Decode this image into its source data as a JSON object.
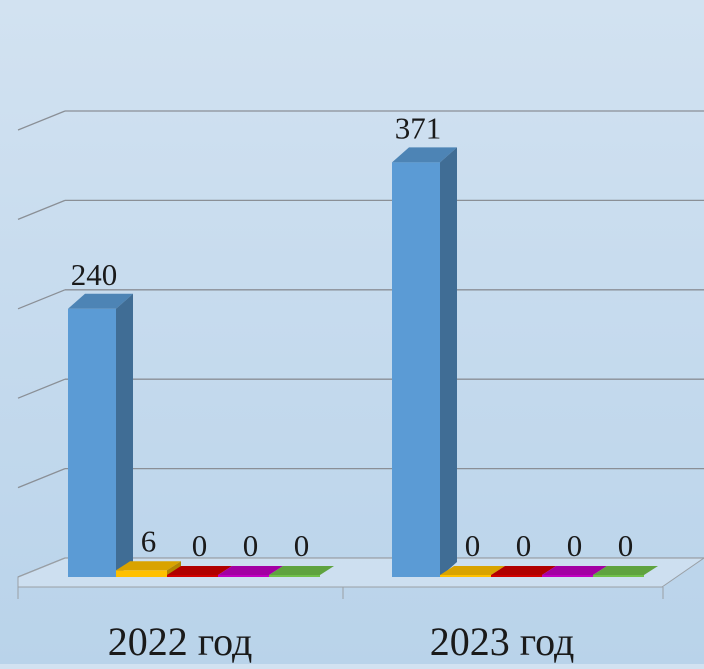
{
  "chart_data": {
    "type": "bar",
    "categories": [
      "2022 год",
      "2023 год"
    ],
    "series": [
      {
        "values": [
          240,
          371
        ],
        "color": "#5b9bd5"
      },
      {
        "values": [
          6,
          0
        ],
        "color": "#ffc000"
      },
      {
        "values": [
          0,
          0
        ],
        "color": "#d00000"
      },
      {
        "values": [
          0,
          0
        ],
        "color": "#c000c0"
      },
      {
        "values": [
          0,
          0
        ],
        "color": "#70c04a"
      }
    ],
    "data_labels": [
      [
        "240",
        "371"
      ],
      [
        "6",
        "0"
      ],
      [
        "0",
        "0"
      ],
      [
        "0",
        "0"
      ],
      [
        "0",
        "0"
      ]
    ],
    "ylim": [
      0,
      400
    ],
    "grid": true,
    "legend": "none",
    "style": "3d-column"
  }
}
